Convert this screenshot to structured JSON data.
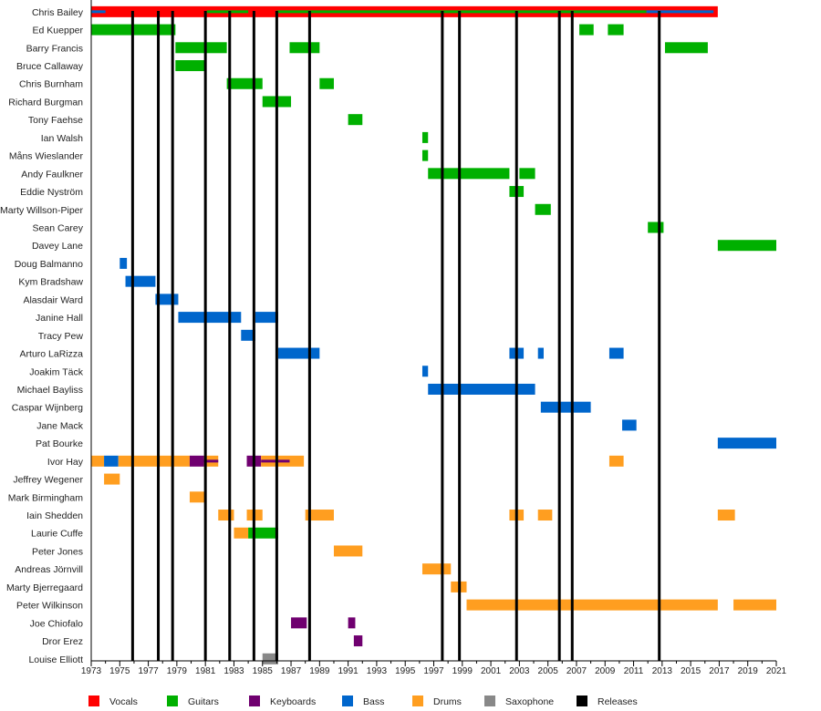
{
  "chart_data": {
    "type": "timeline",
    "title": "",
    "xlabel": "",
    "ylabel": "",
    "xlim": [
      1973,
      2021
    ],
    "x_ticks": [
      1973,
      1975,
      1977,
      1979,
      1981,
      1983,
      1985,
      1987,
      1989,
      1991,
      1993,
      1995,
      1997,
      1999,
      2001,
      2003,
      2005,
      2007,
      2009,
      2011,
      2013,
      2015,
      2017,
      2019,
      2021
    ],
    "colors": {
      "Vocals": "#ff0000",
      "Guitars": "#00b000",
      "Keyboards": "#700070",
      "Bass": "#0066cc",
      "Drums": "#ff9e20",
      "Saxophone": "#888888",
      "Releases": "#000000"
    },
    "legend": [
      "Vocals",
      "Guitars",
      "Keyboards",
      "Bass",
      "Drums",
      "Saxophone",
      "Releases"
    ],
    "legend_position": "bottom",
    "releases": [
      1975.9,
      1977.7,
      1978.7,
      1981.0,
      1982.7,
      1984.4,
      1986.0,
      1988.3,
      1997.6,
      1998.8,
      2002.8,
      2005.8,
      2006.7,
      2012.8
    ],
    "members": [
      {
        "name": "Chris Bailey",
        "bars": [
          {
            "role": "Vocals",
            "start": 1973,
            "end": 2016.9
          },
          {
            "role": "Bass",
            "start": 1973,
            "end": 1974.0,
            "secondary": true
          },
          {
            "role": "Guitars",
            "start": 1981.1,
            "end": 1984.0,
            "secondary": true
          },
          {
            "role": "Guitars",
            "start": 1986.0,
            "end": 2011.9,
            "secondary": true
          },
          {
            "role": "Bass",
            "start": 2011.9,
            "end": 2016.6,
            "secondary": true
          }
        ]
      },
      {
        "name": "Ed Kuepper",
        "bars": [
          {
            "role": "Guitars",
            "start": 1973,
            "end": 1978.9
          },
          {
            "role": "Guitars",
            "start": 2007.2,
            "end": 2008.2
          },
          {
            "role": "Guitars",
            "start": 2009.2,
            "end": 2010.3
          }
        ]
      },
      {
        "name": "Barry Francis",
        "bars": [
          {
            "role": "Guitars",
            "start": 1978.9,
            "end": 1982.5
          },
          {
            "role": "Guitars",
            "start": 1986.9,
            "end": 1989.0
          },
          {
            "role": "Guitars",
            "start": 2013.2,
            "end": 2016.2
          }
        ]
      },
      {
        "name": "Bruce Callaway",
        "bars": [
          {
            "role": "Guitars",
            "start": 1978.9,
            "end": 1981.0
          }
        ]
      },
      {
        "name": "Chris Burnham",
        "bars": [
          {
            "role": "Guitars",
            "start": 1982.5,
            "end": 1985.0
          },
          {
            "role": "Guitars",
            "start": 1989.0,
            "end": 1990.0
          }
        ]
      },
      {
        "name": "Richard Burgman",
        "bars": [
          {
            "role": "Guitars",
            "start": 1985.0,
            "end": 1987.0
          }
        ]
      },
      {
        "name": "Tony Faehse",
        "bars": [
          {
            "role": "Guitars",
            "start": 1991.0,
            "end": 1992.0
          }
        ]
      },
      {
        "name": "Ian Walsh",
        "bars": [
          {
            "role": "Guitars",
            "start": 1996.2,
            "end": 1996.6
          }
        ]
      },
      {
        "name": "Måns Wieslander",
        "bars": [
          {
            "role": "Guitars",
            "start": 1996.2,
            "end": 1996.6
          }
        ]
      },
      {
        "name": "Andy Faulkner",
        "bars": [
          {
            "role": "Guitars",
            "start": 1996.6,
            "end": 2002.3
          },
          {
            "role": "Guitars",
            "start": 2003.0,
            "end": 2004.1
          }
        ]
      },
      {
        "name": "Eddie Nyström",
        "bars": [
          {
            "role": "Guitars",
            "start": 2002.3,
            "end": 2003.3
          }
        ]
      },
      {
        "name": "Marty Willson-Piper",
        "bars": [
          {
            "role": "Guitars",
            "start": 2004.1,
            "end": 2005.2
          }
        ]
      },
      {
        "name": "Sean Carey",
        "bars": [
          {
            "role": "Guitars",
            "start": 2012.0,
            "end": 2013.1
          }
        ]
      },
      {
        "name": "Davey Lane",
        "bars": [
          {
            "role": "Guitars",
            "start": 2016.9,
            "end": 2021
          }
        ]
      },
      {
        "name": "Doug Balmanno",
        "bars": [
          {
            "role": "Bass",
            "start": 1975.0,
            "end": 1975.5
          }
        ]
      },
      {
        "name": "Kym Bradshaw",
        "bars": [
          {
            "role": "Bass",
            "start": 1975.4,
            "end": 1977.5
          }
        ]
      },
      {
        "name": "Alasdair Ward",
        "bars": [
          {
            "role": "Bass",
            "start": 1977.5,
            "end": 1979.1
          }
        ]
      },
      {
        "name": "Janine Hall",
        "bars": [
          {
            "role": "Bass",
            "start": 1979.1,
            "end": 1983.5
          },
          {
            "role": "Bass",
            "start": 1984.5,
            "end": 1986.1
          }
        ]
      },
      {
        "name": "Tracy Pew",
        "bars": [
          {
            "role": "Bass",
            "start": 1983.5,
            "end": 1984.5
          }
        ]
      },
      {
        "name": "Arturo LaRizza",
        "bars": [
          {
            "role": "Bass",
            "start": 1986.1,
            "end": 1989.0
          },
          {
            "role": "Bass",
            "start": 2002.3,
            "end": 2003.3
          },
          {
            "role": "Bass",
            "start": 2004.3,
            "end": 2004.7
          },
          {
            "role": "Bass",
            "start": 2009.3,
            "end": 2010.3
          }
        ]
      },
      {
        "name": "Joakim Täck",
        "bars": [
          {
            "role": "Bass",
            "start": 1996.2,
            "end": 1996.6
          }
        ]
      },
      {
        "name": "Michael Bayliss",
        "bars": [
          {
            "role": "Bass",
            "start": 1996.6,
            "end": 2004.1
          }
        ]
      },
      {
        "name": "Caspar Wijnberg",
        "bars": [
          {
            "role": "Bass",
            "start": 2004.5,
            "end": 2008.0
          }
        ]
      },
      {
        "name": "Jane Mack",
        "bars": [
          {
            "role": "Bass",
            "start": 2010.2,
            "end": 2011.2
          }
        ]
      },
      {
        "name": "Pat Bourke",
        "bars": [
          {
            "role": "Bass",
            "start": 2016.9,
            "end": 2021
          }
        ]
      },
      {
        "name": "Ivor Hay",
        "bars": [
          {
            "role": "Drums",
            "start": 1973,
            "end": 1973.9
          },
          {
            "role": "Bass",
            "start": 1973.9,
            "end": 1974.9
          },
          {
            "role": "Drums",
            "start": 1974.9,
            "end": 1979.9
          },
          {
            "role": "Keyboards",
            "start": 1979.9,
            "end": 1980.9
          },
          {
            "role": "Drums",
            "start": 1980.9,
            "end": 1981.9
          },
          {
            "role": "Keyboards",
            "start": 1980.9,
            "end": 1981.9,
            "secondary": true
          },
          {
            "role": "Keyboards",
            "start": 1983.9,
            "end": 1984.9
          },
          {
            "role": "Drums",
            "start": 1984.9,
            "end": 1987.9
          },
          {
            "role": "Keyboards",
            "start": 1984.9,
            "end": 1986.9,
            "secondary": true
          },
          {
            "role": "Drums",
            "start": 2009.3,
            "end": 2010.3
          }
        ]
      },
      {
        "name": "Jeffrey Wegener",
        "bars": [
          {
            "role": "Drums",
            "start": 1973.9,
            "end": 1975.0
          }
        ]
      },
      {
        "name": "Mark Birmingham",
        "bars": [
          {
            "role": "Drums",
            "start": 1979.9,
            "end": 1981.0
          }
        ]
      },
      {
        "name": "Iain Shedden",
        "bars": [
          {
            "role": "Drums",
            "start": 1981.9,
            "end": 1983.0
          },
          {
            "role": "Drums",
            "start": 1983.9,
            "end": 1985.0
          },
          {
            "role": "Drums",
            "start": 1988.0,
            "end": 1990.0
          },
          {
            "role": "Drums",
            "start": 2002.3,
            "end": 2003.3
          },
          {
            "role": "Drums",
            "start": 2004.3,
            "end": 2005.3
          },
          {
            "role": "Drums",
            "start": 2016.9,
            "end": 2018.1
          }
        ]
      },
      {
        "name": "Laurie Cuffe",
        "bars": [
          {
            "role": "Drums",
            "start": 1983.0,
            "end": 1984.0
          },
          {
            "role": "Guitars",
            "start": 1984.0,
            "end": 1986.1
          }
        ]
      },
      {
        "name": "Peter Jones",
        "bars": [
          {
            "role": "Drums",
            "start": 1990.0,
            "end": 1992.0
          }
        ]
      },
      {
        "name": "Andreas Jörnvill",
        "bars": [
          {
            "role": "Drums",
            "start": 1996.2,
            "end": 1998.2
          }
        ]
      },
      {
        "name": "Marty Bjerregaard",
        "bars": [
          {
            "role": "Drums",
            "start": 1998.2,
            "end": 1999.3
          }
        ]
      },
      {
        "name": "Peter Wilkinson",
        "bars": [
          {
            "role": "Drums",
            "start": 1999.3,
            "end": 2016.9
          },
          {
            "role": "Drums",
            "start": 2018.0,
            "end": 2021
          }
        ]
      },
      {
        "name": "Joe Chiofalo",
        "bars": [
          {
            "role": "Keyboards",
            "start": 1987.0,
            "end": 1988.1
          },
          {
            "role": "Keyboards",
            "start": 1991.0,
            "end": 1991.5
          }
        ]
      },
      {
        "name": "Dror Erez",
        "bars": [
          {
            "role": "Keyboards",
            "start": 1991.4,
            "end": 1992.0
          }
        ]
      },
      {
        "name": "Louise Elliott",
        "bars": [
          {
            "role": "Saxophone",
            "start": 1985.0,
            "end": 1986.1
          }
        ]
      }
    ]
  }
}
